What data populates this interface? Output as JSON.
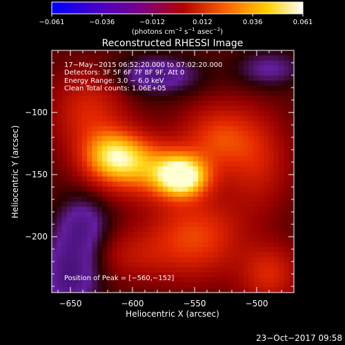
{
  "colorbar": {
    "ticks": [
      "−0.061",
      "−0.036",
      "−0.012",
      "0.012",
      "0.036",
      "0.061"
    ],
    "unit_label_parts": [
      "(photons cm",
      "−2",
      " s",
      "−1",
      " asec",
      "−2",
      ")"
    ],
    "colors": [
      "#0000ff",
      "#4400cc",
      "#7a0088",
      "#b00000",
      "#ff6600",
      "#ffd000",
      "#ffffff"
    ]
  },
  "title": "Reconstructed RHESSI Image",
  "info": {
    "time_range": "17−May−2015 06:52:20.000 to 07:02:20.000",
    "detectors": "Detectors: 3F 5F 6F 7F 8F 9F, Att 0",
    "energy": "Energy Range: 3.0 − 6.0 keV",
    "clean_counts": "Clean    Total counts: 1.06E+05",
    "peak": "Position of Peak = [−560,−152]"
  },
  "footer_timestamp": "23−Oct−2017 09:58",
  "chart_data": {
    "type": "heatmap",
    "title": "Reconstructed RHESSI Image",
    "xlabel": "Heliocentric X (arcsec)",
    "ylabel": "Heliocentric Y (arcsec)",
    "xlim": [
      -665,
      -470
    ],
    "ylim": [
      -245,
      -50
    ],
    "xticks": [
      -650,
      -600,
      -550,
      -500
    ],
    "yticks": [
      -100,
      -150,
      -200
    ],
    "x_tick_labels": [
      "−650",
      "−600",
      "−550",
      "−500"
    ],
    "y_tick_labels": [
      "−100",
      "−150",
      "−200"
    ],
    "value_range": [
      -0.061,
      0.061
    ],
    "peak": [
      -560,
      -152
    ],
    "sources": [
      {
        "x": -560,
        "y": -152,
        "amp": 0.055,
        "sx": 14,
        "sy": 11
      },
      {
        "x": -615,
        "y": -135,
        "amp": 0.042,
        "sx": 17,
        "sy": 14
      },
      {
        "x": -585,
        "y": -145,
        "amp": 0.03,
        "sx": 25,
        "sy": 16
      },
      {
        "x": -530,
        "y": -120,
        "amp": 0.022,
        "sx": 20,
        "sy": 18
      },
      {
        "x": -635,
        "y": -100,
        "amp": 0.018,
        "sx": 20,
        "sy": 22
      },
      {
        "x": -500,
        "y": -140,
        "amp": 0.015,
        "sx": 18,
        "sy": 26
      },
      {
        "x": -550,
        "y": -200,
        "amp": 0.024,
        "sx": 26,
        "sy": 22
      },
      {
        "x": -490,
        "y": -230,
        "amp": 0.018,
        "sx": 16,
        "sy": 16
      },
      {
        "x": -600,
        "y": -215,
        "amp": 0.01,
        "sx": 22,
        "sy": 14
      },
      {
        "x": -650,
        "y": -230,
        "amp": -0.022,
        "sx": 16,
        "sy": 22
      },
      {
        "x": -640,
        "y": -190,
        "amp": -0.016,
        "sx": 14,
        "sy": 16
      },
      {
        "x": -580,
        "y": -70,
        "amp": -0.02,
        "sx": 22,
        "sy": 10
      },
      {
        "x": -490,
        "y": -65,
        "amp": -0.014,
        "sx": 18,
        "sy": 10
      }
    ]
  }
}
